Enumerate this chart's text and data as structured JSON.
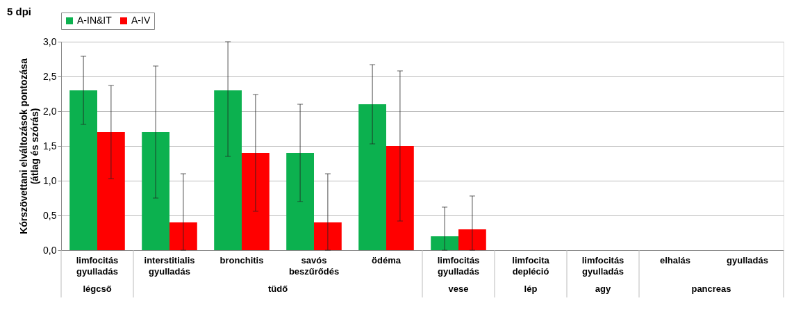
{
  "chart_data": {
    "type": "bar",
    "categories": [
      "limfocitás gyulladás",
      "interstitialis gyulladás",
      "bronchitis",
      "savós beszűrődés",
      "ödéma",
      "limfocitás gyulladás",
      "limfocita depléció",
      "limfocitás gyulladás",
      "elhalás",
      "gyulladás"
    ],
    "ylabel": "Kórszövettani elváltozások pontozása (átlag és szórás)",
    "series": [
      {
        "name": "A-IN&IT",
        "color": "#0cb14f",
        "values": [
          2.3,
          1.7,
          2.3,
          1.4,
          2.1,
          0.2,
          0,
          0,
          0,
          0
        ],
        "errors": [
          [
            1.81,
            2.79
          ],
          [
            0.75,
            2.65
          ],
          [
            1.35,
            3.0
          ],
          [
            0.7,
            2.1
          ],
          [
            1.53,
            2.67
          ],
          [
            0,
            0.62
          ],
          null,
          null,
          null,
          null
        ]
      },
      {
        "name": "A-IV",
        "color": "#ff0000",
        "values": [
          1.7,
          0.4,
          1.4,
          0.4,
          1.5,
          0.3,
          0,
          0,
          0,
          0
        ],
        "errors": [
          [
            1.03,
            2.37
          ],
          [
            0,
            1.1
          ],
          [
            0.56,
            2.24
          ],
          [
            0,
            1.1
          ],
          [
            0.42,
            2.58
          ],
          [
            0,
            0.78
          ],
          null,
          null,
          null,
          null
        ]
      }
    ],
    "ylim": [
      0,
      3.0
    ],
    "yticks": [
      {
        "value": 0,
        "label": "0,0"
      },
      {
        "value": 0.5,
        "label": "0,5"
      },
      {
        "value": 1.0,
        "label": "1,0"
      },
      {
        "value": 1.5,
        "label": "1,5"
      },
      {
        "value": 2.0,
        "label": "2,0"
      },
      {
        "value": 2.5,
        "label": "2,5"
      },
      {
        "value": 3.0,
        "label": "3,0"
      }
    ],
    "grid": "y",
    "legend": "top",
    "annotations": [
      "5 dpi",
      "légcső",
      "tüdő",
      "vese",
      "lép",
      "agy",
      "pancreas"
    ]
  }
}
